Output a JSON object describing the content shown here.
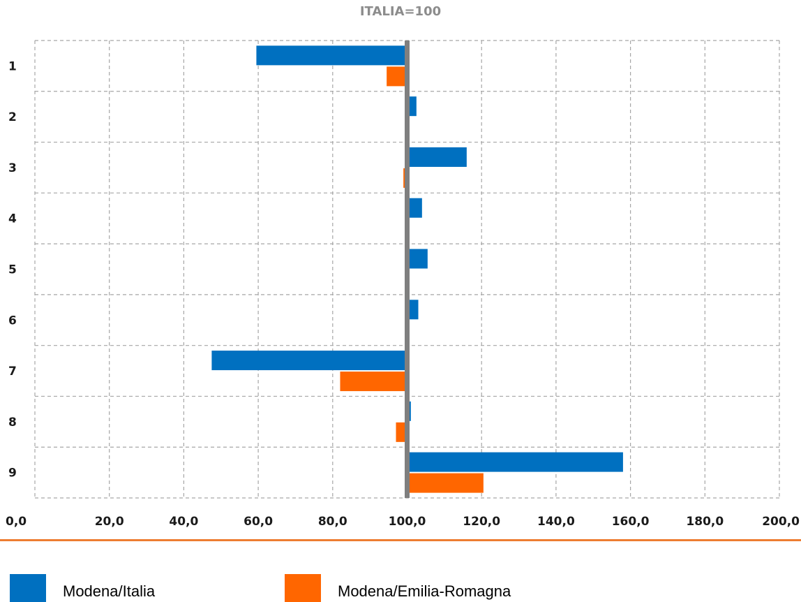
{
  "chart_data": {
    "type": "bar",
    "orientation": "horizontal",
    "title": "ITALIA=100",
    "categories": [
      "1",
      "2",
      "3",
      "4",
      "5",
      "6",
      "7",
      "8",
      "9"
    ],
    "series": [
      {
        "name": "Modena/Italia",
        "color": "#0070c0",
        "values": [
          59.5,
          102.5,
          116.0,
          104.0,
          105.5,
          103.0,
          47.5,
          101.0,
          158.0
        ]
      },
      {
        "name": "Modena/Emilia-Romagna",
        "color": "#ff6600",
        "values": [
          94.5,
          null,
          99.0,
          null,
          null,
          null,
          82.0,
          97.0,
          120.5
        ]
      }
    ],
    "baseline": 100,
    "xlim": [
      0,
      200
    ],
    "x_ticks": [
      "0,0",
      "20,0",
      "40,0",
      "60,0",
      "80,0",
      "100,0",
      "120,0",
      "140,0",
      "160,0",
      "180,0",
      "200,0"
    ],
    "grid": true,
    "legend_position": "bottom"
  }
}
